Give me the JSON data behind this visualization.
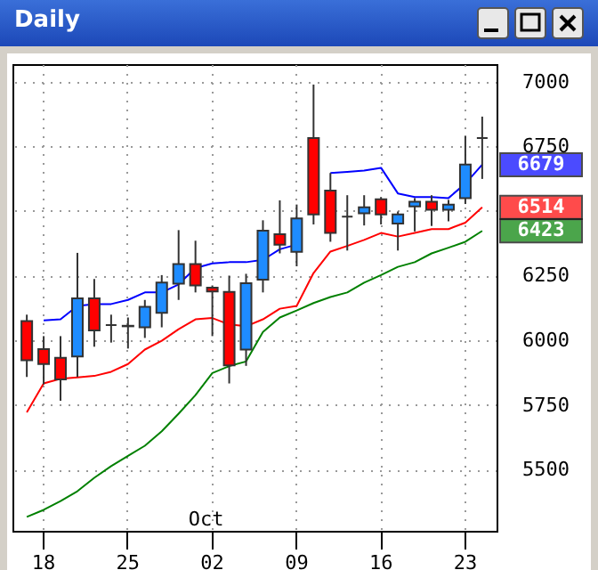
{
  "chart_data": {
    "type": "candlestick",
    "title": "Daily",
    "categories": [
      null,
      "18",
      null,
      null,
      null,
      null,
      "25",
      null,
      null,
      null,
      null,
      "02",
      null,
      null,
      null,
      null,
      "09",
      null,
      null,
      null,
      null,
      "16",
      null,
      null,
      null,
      null,
      "23",
      null
    ],
    "ohlc": [
      [
        6074,
        6099,
        5858,
        5923
      ],
      [
        5966,
        6016,
        5829,
        5908
      ],
      [
        5932,
        6016,
        5766,
        5849
      ],
      [
        5937,
        6338,
        5858,
        6162
      ],
      [
        6162,
        6237,
        5975,
        6038
      ],
      [
        6059,
        6099,
        5991,
        6059
      ],
      [
        6056,
        6088,
        5968,
        6054
      ],
      [
        6050,
        6156,
        6009,
        6129
      ],
      [
        6106,
        6252,
        6050,
        6223
      ],
      [
        6219,
        6426,
        6156,
        6295
      ],
      [
        6295,
        6385,
        6185,
        6212
      ],
      [
        6203,
        6212,
        6016,
        6189
      ],
      [
        6187,
        6250,
        5833,
        5903
      ],
      [
        5964,
        6257,
        5901,
        6221
      ],
      [
        6234,
        6464,
        6185,
        6424
      ],
      [
        6410,
        6541,
        6336,
        6370
      ],
      [
        6342,
        6525,
        6286,
        6471
      ],
      [
        6782,
        6989,
        6448,
        6487
      ],
      [
        6579,
        6647,
        6381,
        6415
      ],
      [
        6478,
        6561,
        6347,
        6478
      ],
      [
        6491,
        6561,
        6444,
        6514
      ],
      [
        6545,
        6554,
        6448,
        6487
      ],
      [
        6451,
        6498,
        6347,
        6487
      ],
      [
        6518,
        6550,
        6421,
        6536
      ],
      [
        6536,
        6561,
        6442,
        6505
      ],
      [
        6505,
        6543,
        6460,
        6525
      ],
      [
        6550,
        6791,
        6527,
        6680
      ],
      [
        6782,
        6865,
        6624,
        6782
      ]
    ],
    "colors": [
      "#ff0000",
      "#ff0000",
      "#ff0000",
      "#1e8cff",
      "#ff0000",
      "#333333",
      "#333333",
      "#1e8cff",
      "#1e8cff",
      "#1e8cff",
      "#ff0000",
      "#ff0000",
      "#ff0000",
      "#1e8cff",
      "#1e8cff",
      "#ff0000",
      "#1e8cff",
      "#ff0000",
      "#ff0000",
      "#333333",
      "#1e8cff",
      "#ff0000",
      "#1e8cff",
      "#1e8cff",
      "#ff0000",
      "#1e8cff",
      "#1e8cff",
      "#333333"
    ],
    "series": [
      {
        "type": "line",
        "color": "#0000ff",
        "values": [
          null,
          6077,
          6081,
          6133,
          6140,
          6140,
          6156,
          6185,
          6185,
          6216,
          6279,
          6297,
          6302,
          6302,
          6311,
          6352,
          6370,
          null,
          6647,
          6651,
          6656,
          6667,
          6568,
          6554,
          6554,
          6550,
          6606,
          6679
        ],
        "value_labels": [
          null,
          null,
          null,
          null,
          null,
          null,
          null,
          null,
          null,
          null,
          null,
          null,
          null,
          null,
          null,
          null,
          null,
          null,
          null,
          null,
          null,
          null,
          null,
          null,
          null,
          null,
          null,
          "6679"
        ]
      },
      {
        "type": "line",
        "color": "#ff0000",
        "values": [
          5721,
          5833,
          5851,
          5856,
          5862,
          5878,
          5908,
          5964,
          5998,
          6043,
          6081,
          6086,
          6061,
          6054,
          6081,
          6122,
          6133,
          6260,
          6343,
          6365,
          6388,
          6415,
          6401,
          6415,
          6430,
          6430,
          6455,
          6514
        ],
        "value_labels": [
          null,
          null,
          null,
          null,
          null,
          null,
          null,
          null,
          null,
          null,
          null,
          null,
          null,
          null,
          null,
          null,
          null,
          null,
          null,
          null,
          null,
          null,
          null,
          null,
          null,
          null,
          null,
          "6514"
        ]
      },
      {
        "type": "line",
        "color": "#008000",
        "values": [
          5317,
          5344,
          5378,
          5416,
          5468,
          5513,
          5553,
          5592,
          5648,
          5716,
          5788,
          5873,
          5900,
          5918,
          6032,
          6088,
          6115,
          6144,
          6167,
          6185,
          6223,
          6252,
          6284,
          6302,
          6336,
          6358,
          6381,
          6423
        ],
        "value_labels": [
          null,
          null,
          null,
          null,
          null,
          null,
          null,
          null,
          null,
          null,
          null,
          null,
          null,
          null,
          null,
          null,
          null,
          null,
          null,
          null,
          null,
          null,
          null,
          null,
          null,
          null,
          null,
          "6423"
        ]
      }
    ],
    "ylim": [
      5263,
      7068
    ],
    "yticks": [
      5500,
      5750,
      6000,
      6250,
      {
        "value": 6500,
        "label": null
      },
      6750,
      7000
    ],
    "grid": true,
    "annotations": [
      "Oct"
    ]
  }
}
